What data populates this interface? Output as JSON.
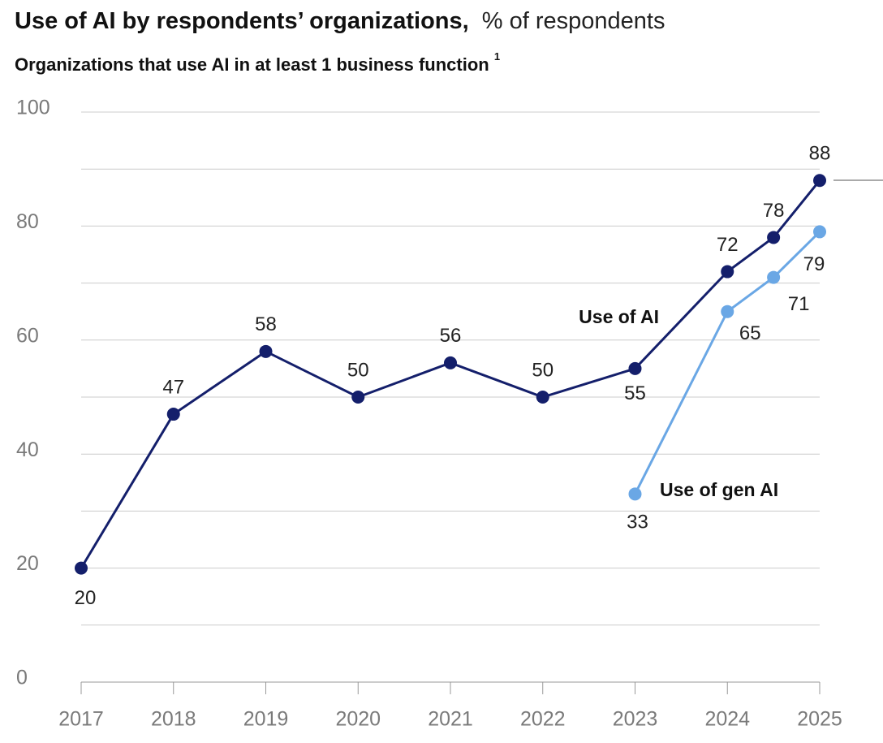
{
  "chart_data": {
    "type": "line",
    "title": "Use of AI by respondents’ organizations,",
    "title_units": "% of respondents",
    "subtitle": "Organizations that use AI in at least 1 business function",
    "subtitle_footnote": "1",
    "x": [
      2017,
      2018,
      2019,
      2020,
      2021,
      2022,
      2023,
      2024,
      2024.5,
      2025
    ],
    "series": [
      {
        "name": "Use of AI",
        "color": "#141f6b",
        "values": [
          20,
          47,
          58,
          50,
          56,
          50,
          55,
          72,
          78,
          88
        ]
      },
      {
        "name": "Use of gen AI",
        "color": "#6aa7e5",
        "values": [
          null,
          null,
          null,
          null,
          null,
          null,
          33,
          65,
          71,
          79
        ]
      }
    ],
    "xlim": [
      2017,
      2025
    ],
    "xticks": [
      2017,
      2018,
      2019,
      2020,
      2021,
      2022,
      2023,
      2024,
      2025
    ],
    "ylim": [
      0,
      100
    ],
    "yticks": [
      0,
      20,
      40,
      60,
      80,
      100
    ],
    "minor_yticks": [
      10,
      30,
      50,
      70,
      90
    ],
    "grid": true
  }
}
